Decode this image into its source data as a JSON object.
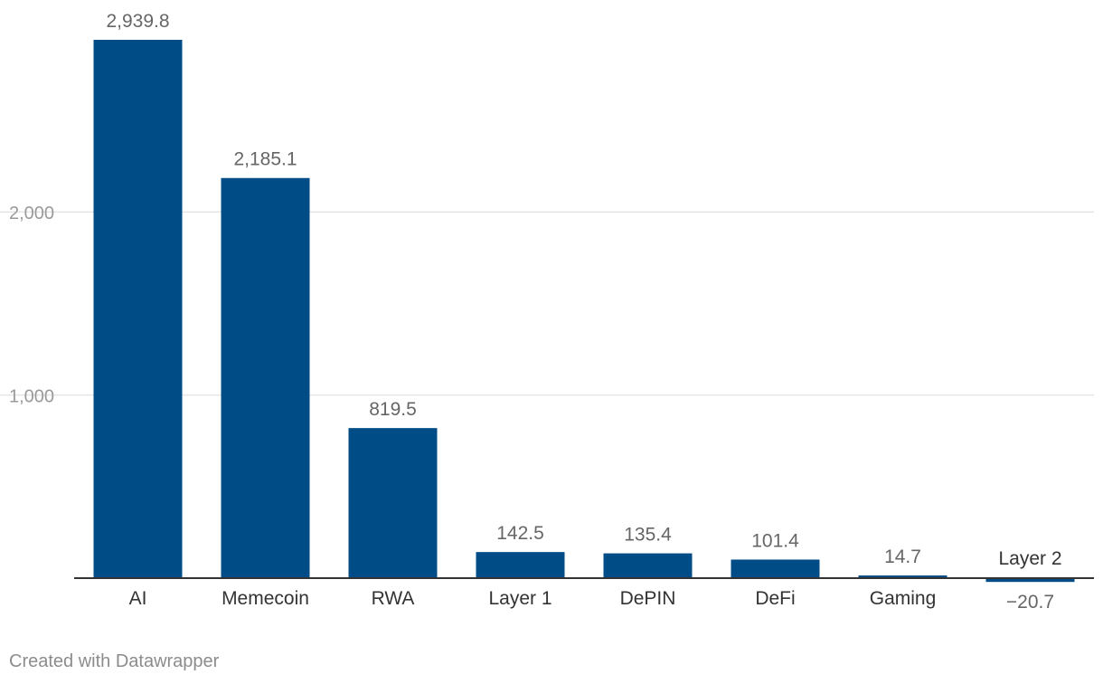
{
  "chart_data": {
    "type": "bar",
    "title": "",
    "xlabel": "",
    "ylabel": "",
    "categories": [
      "AI",
      "Memecoin",
      "RWA",
      "Layer 1",
      "DePIN",
      "DeFi",
      "Gaming",
      "Layer 2"
    ],
    "values": [
      2939.8,
      2185.1,
      819.5,
      142.5,
      135.4,
      101.4,
      14.7,
      -20.7
    ],
    "value_labels": [
      "2,939.8",
      "2,185.1",
      "819.5",
      "142.5",
      "135.4",
      "101.4",
      "14.7",
      "−20.7"
    ],
    "yticks": [
      1000,
      2000
    ],
    "ytick_labels": [
      "1,000",
      "2,000"
    ],
    "ylim": [
      -20.7,
      2939.8
    ],
    "grid": true,
    "bar_color": "#004c87",
    "grid_color": "#e5e5e5",
    "axis_color": "#333333",
    "value_label_color": "#666666",
    "tick_label_color": "#9a9a9a",
    "category_label_color": "#333333"
  },
  "footer": {
    "credit": "Created with Datawrapper"
  }
}
